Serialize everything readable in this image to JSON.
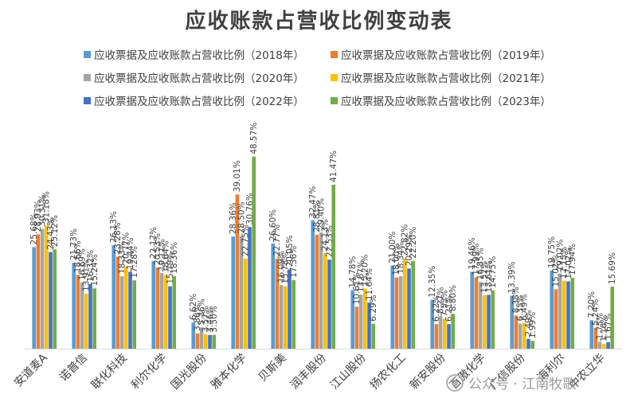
{
  "chart_data": {
    "type": "bar",
    "title": "应收账款占营收比例变动表",
    "xlabel": "",
    "ylabel": "",
    "ylim": [
      0,
      60
    ],
    "grid": false,
    "legend_position": "top",
    "categories": [
      "安道麦A",
      "诺普信",
      "联化科技",
      "利尔化学",
      "国光股份",
      "雅本化学",
      "贝斯美",
      "润丰股份",
      "江山股份",
      "扬农化工",
      "新安股份",
      "百傲化学",
      "广信股份",
      "海利尔",
      "中农立华"
    ],
    "series": [
      {
        "name": "应收票据及应收账款占营收比例（2018年）",
        "color": "#5b9bd5",
        "values": [
          25.68,
          21.73,
          26.13,
          22.17,
          6.62,
          28.36,
          26.6,
          32.47,
          14.78,
          21.0,
          12.35,
          19.46,
          13.39,
          19.75,
          7.2
        ]
      },
      {
        "name": "应收票据及应收账款占营收比例（2019年）",
        "color": "#ed7d31",
        "values": [
          28.93,
          18.66,
          23.28,
          20.53,
          3.86,
          39.01,
          22.77,
          28.81,
          10.61,
          18.0,
          6.22,
          17.99,
          8.38,
          15.02,
          5.24
        ]
      },
      {
        "name": "应收票据及应收账款占营收比例（2020年）",
        "color": "#a5a5a5",
        "values": [
          30.31,
          16.69,
          18.33,
          19.11,
          5.36,
          28.5,
          16.09,
          29.4,
          13.67,
          18.34,
          8.27,
          16.85,
          6.35,
          19.02,
          1.75
        ]
      },
      {
        "name": "应收票据及应收账款占营收比例（2021年）",
        "color": "#ffc000",
        "values": [
          31.18,
          13.91,
          20.77,
          18.64,
          3.57,
          22.75,
          15.78,
          24.13,
          15.2,
          22.82,
          7.53,
          13.52,
          6.49,
          17.15,
          1.16
        ]
      },
      {
        "name": "应收票据及应收账款占营收比例（2022年）",
        "color": "#4472c4",
        "values": [
          24.43,
          16.32,
          19.44,
          15.79,
          3.46,
          30.76,
          20.05,
          22.53,
          11.64,
          20.29,
          6.21,
          13.61,
          2.49,
          17.02,
          1.67
        ]
      },
      {
        "name": "应收票据及应收账款占营收比例（2023年）",
        "color": "#70ad47",
        "values": [
          25.12,
          15.24,
          17.28,
          18.36,
          3.5,
          48.57,
          17.36,
          41.47,
          6.29,
          22.2,
          8.8,
          14.75,
          1.99,
          17.94,
          15.69
        ]
      }
    ]
  },
  "watermark": {
    "text": "公众号 · 江南牧歌"
  }
}
